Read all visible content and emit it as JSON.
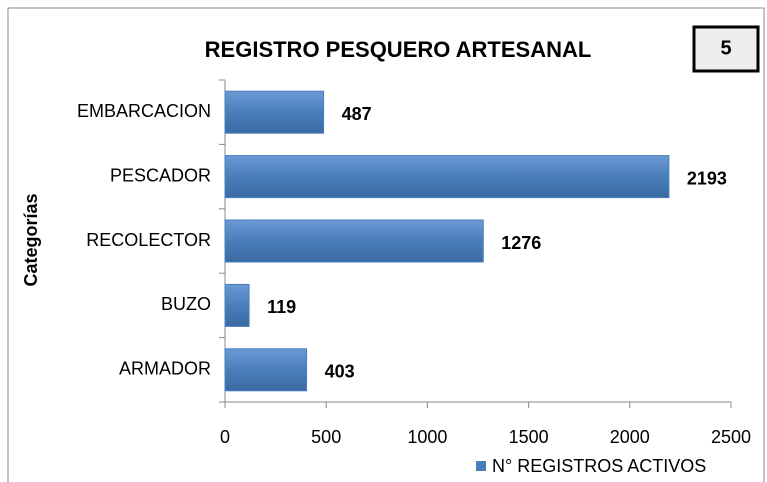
{
  "chart_data": {
    "type": "barh",
    "title": "REGISTRO PESQUERO ARTESANAL",
    "annotation": "5",
    "y_label": "Categorías",
    "categories": [
      "EMBARCACION",
      "PESCADOR",
      "RECOLECTOR",
      "BUZO",
      "ARMADOR"
    ],
    "series": [
      {
        "name": "N° REGISTROS  ACTIVOS",
        "color": "#4a7ebb",
        "values": [
          487,
          2193,
          1276,
          119,
          403
        ]
      }
    ],
    "xlim": [
      0,
      2500
    ],
    "xticks": [
      0,
      500,
      1000,
      1500,
      2000,
      2500
    ],
    "legend": "bottom-right"
  }
}
